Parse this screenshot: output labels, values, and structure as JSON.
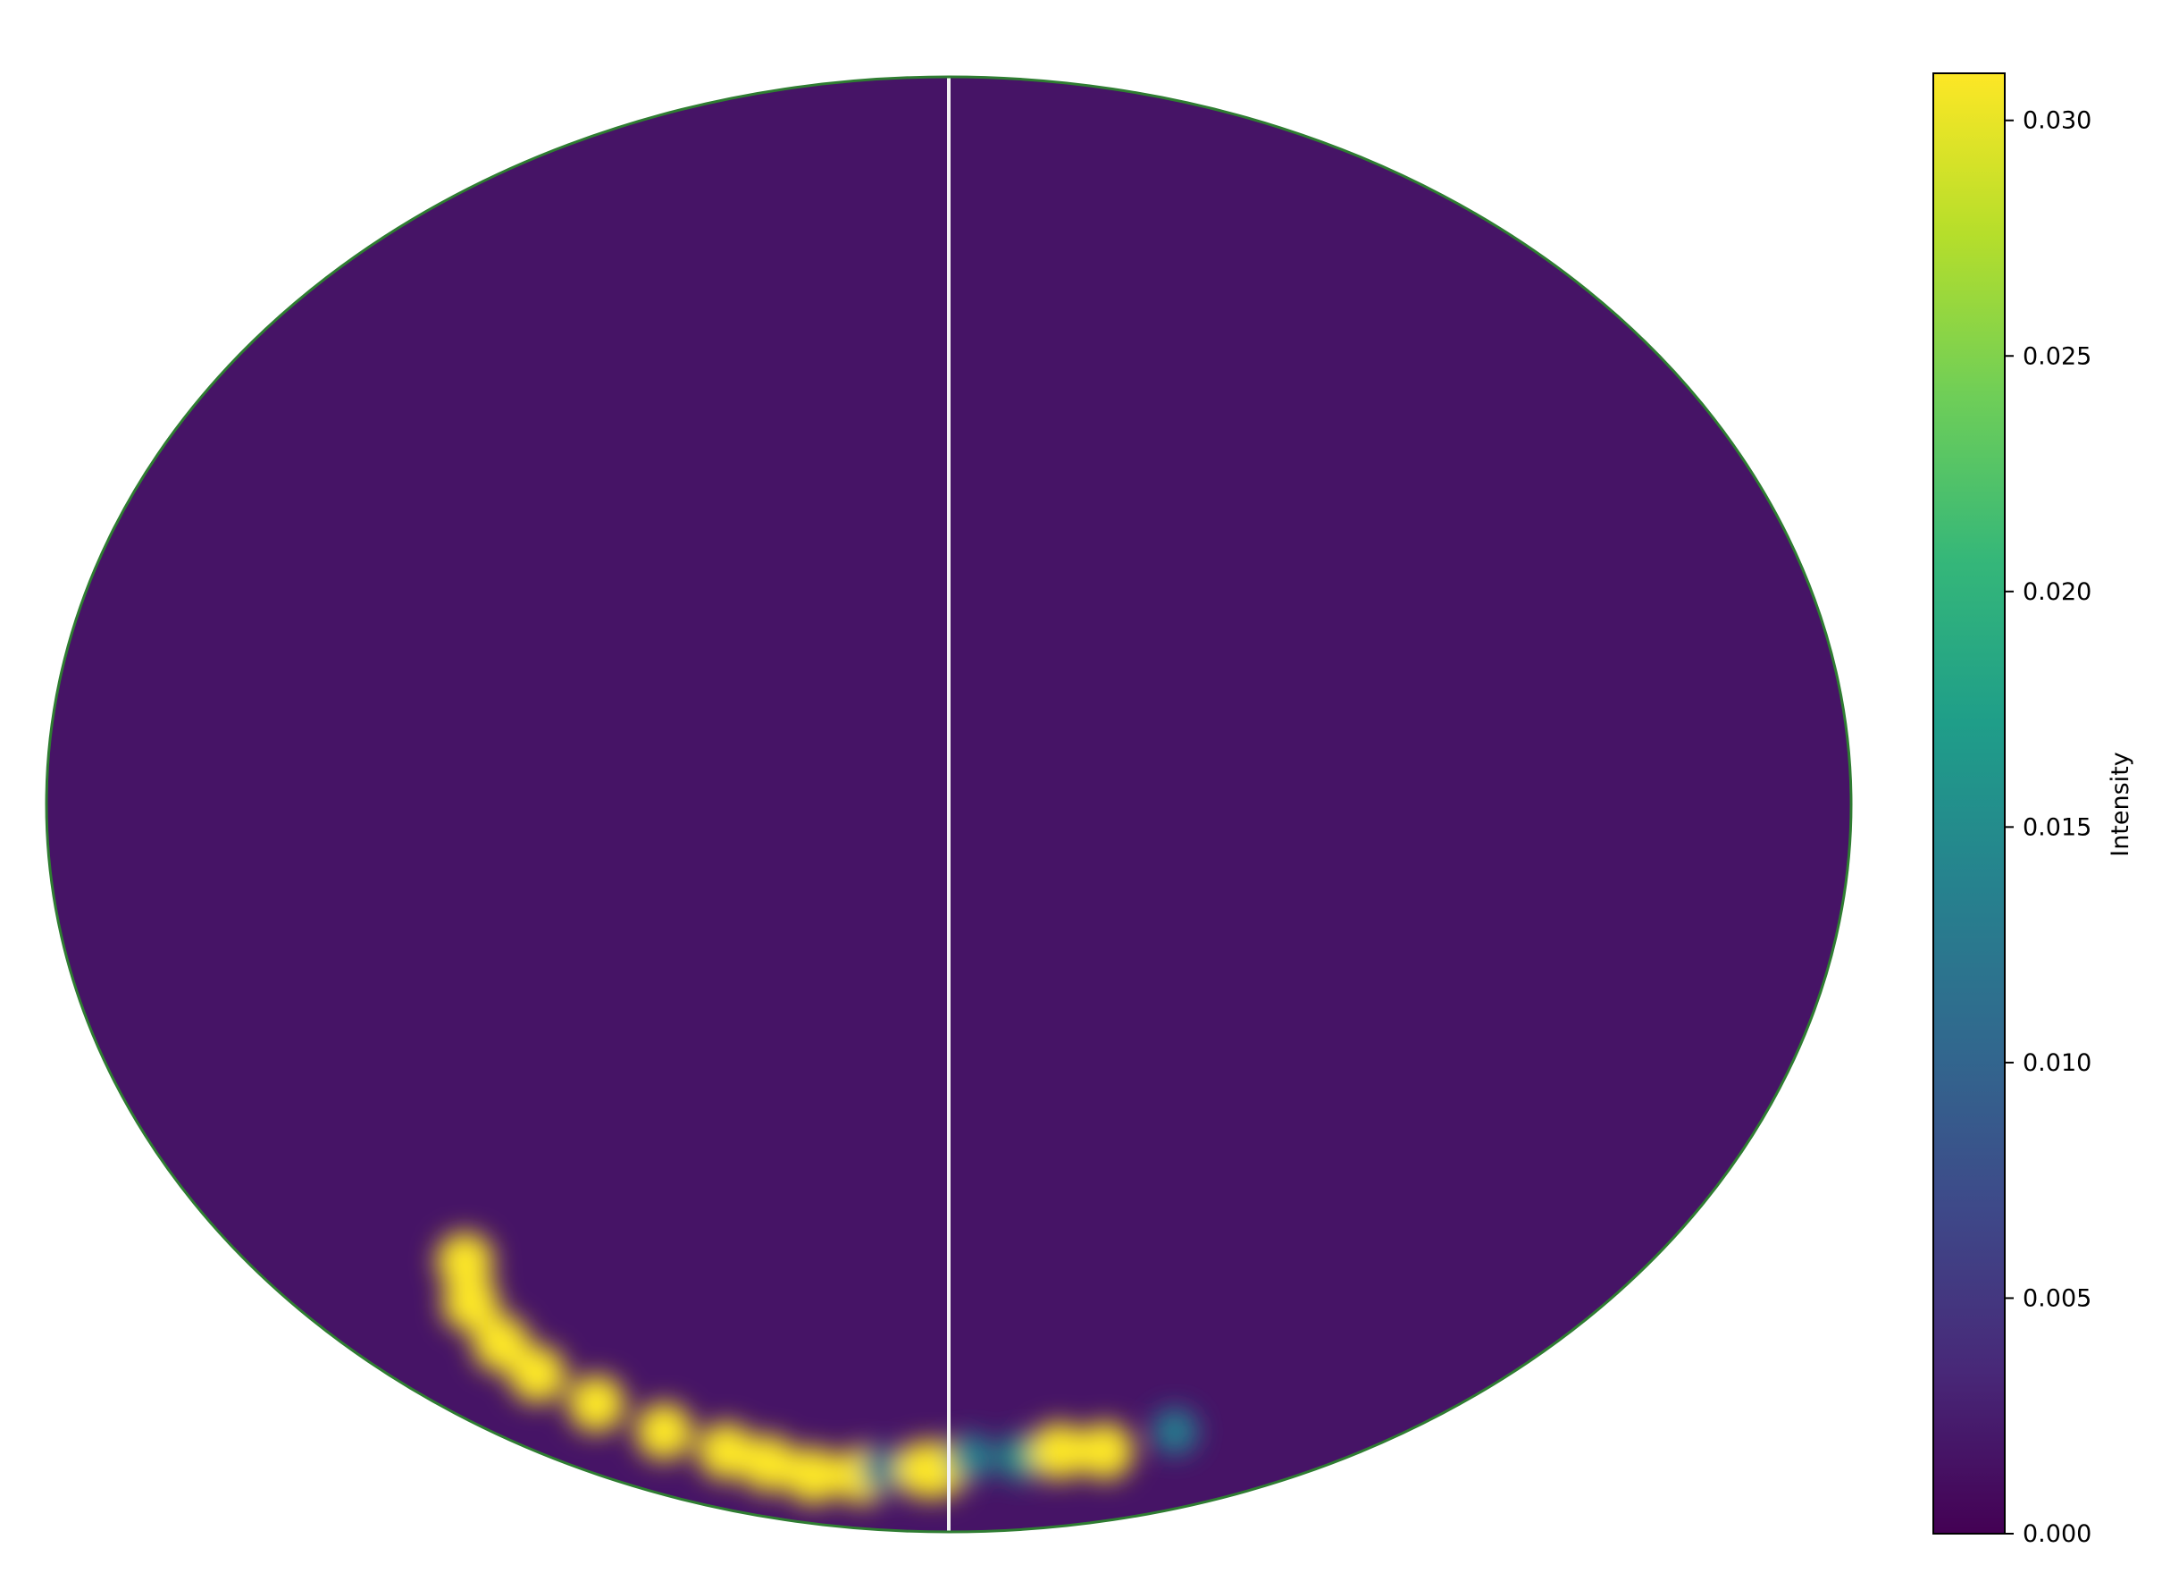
{
  "chart_data": {
    "type": "heatmap",
    "projection": "mollweide",
    "title": "",
    "xlabel": "",
    "ylabel": "",
    "grid": false,
    "colormap": "viridis",
    "background_value": 0.0017,
    "colorbar": {
      "label": "Intensity",
      "vmin": 0.0,
      "vmax": 0.031,
      "ticks": [
        0.0,
        0.005,
        0.01,
        0.015,
        0.02,
        0.025,
        0.03
      ],
      "tick_labels": [
        "0.000",
        "0.005",
        "0.010",
        "0.015",
        "0.020",
        "0.025",
        "0.030"
      ],
      "placement": "right"
    },
    "central_meridian_line": true,
    "hotspots": [
      {
        "lon": -124,
        "lat": -48,
        "value": 0.031
      },
      {
        "lon": -131,
        "lat": -53,
        "value": 0.031
      },
      {
        "lon": -133,
        "lat": -58,
        "value": 0.031
      },
      {
        "lon": -132,
        "lat": -62,
        "value": 0.031
      },
      {
        "lon": -124,
        "lat": -66,
        "value": 0.031
      },
      {
        "lon": -112,
        "lat": -70,
        "value": 0.031
      },
      {
        "lon": -97,
        "lat": -73,
        "value": 0.031
      },
      {
        "lon": -85,
        "lat": -75,
        "value": 0.031
      },
      {
        "lon": -70,
        "lat": -77,
        "value": 0.031
      },
      {
        "lon": -45,
        "lat": -77,
        "value": 0.031
      },
      {
        "lon": -32,
        "lat": -76,
        "value": 0.012
      },
      {
        "lon": -12,
        "lat": -76,
        "value": 0.031
      },
      {
        "lon": -5,
        "lat": -76,
        "value": 0.031
      },
      {
        "lon": 10,
        "lat": -74,
        "value": 0.014
      },
      {
        "lon": 33,
        "lat": -74,
        "value": 0.016
      },
      {
        "lon": 48,
        "lat": -73,
        "value": 0.031
      },
      {
        "lon": 68,
        "lat": -73,
        "value": 0.031
      },
      {
        "lon": 89,
        "lat": -70,
        "value": 0.013
      }
    ]
  }
}
